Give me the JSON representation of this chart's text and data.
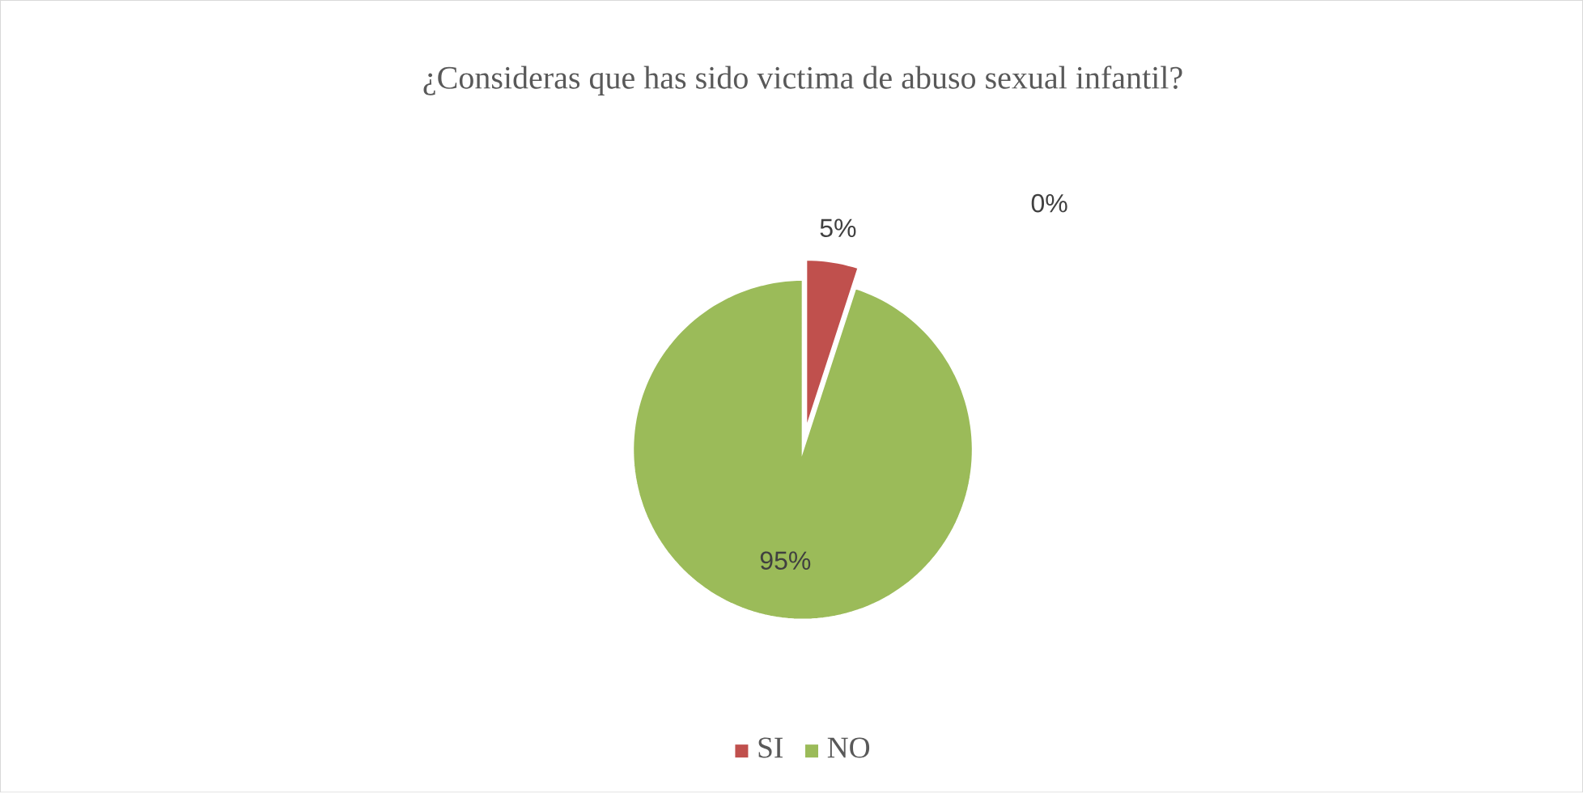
{
  "chart_data": {
    "type": "pie",
    "title": "¿Consideras que has sido victima de abuso sexual infantil?",
    "categories": [
      "SI",
      "NO",
      null
    ],
    "values": [
      5,
      95,
      0
    ],
    "colors": [
      "#c0504d",
      "#9bbb59",
      "#4f81bd"
    ],
    "value_labels": [
      "5%",
      "95%",
      "0%"
    ],
    "legend": "bottom"
  }
}
